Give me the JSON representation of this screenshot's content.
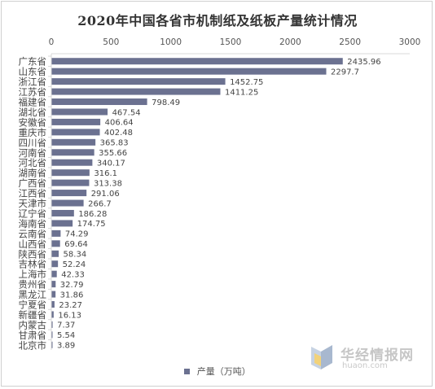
{
  "chart_data": {
    "type": "bar",
    "orientation": "horizontal",
    "title": "2020年中国各省市机制纸及纸板产量统计情况",
    "categories": [
      "广东省",
      "山东省",
      "浙江省",
      "江苏省",
      "福建省",
      "湖北省",
      "安徽省",
      "重庆市",
      "四川省",
      "河南省",
      "河北省",
      "湖南省",
      "广西省",
      "江西省",
      "天津市",
      "辽宁省",
      "海南省",
      "云南省",
      "山西省",
      "陕西省",
      "吉林省",
      "上海市",
      "贵州省",
      "黑龙江",
      "宁夏省",
      "新疆省",
      "内蒙古",
      "甘肃省",
      "北京市"
    ],
    "series": [
      {
        "name": "产量（万吨）",
        "values": [
          2435.96,
          2297.7,
          1452.75,
          1411.25,
          798.49,
          467.54,
          406.64,
          402.48,
          365.83,
          355.66,
          340.17,
          316.1,
          313.38,
          291.06,
          266.7,
          186.28,
          174.75,
          74.29,
          69.64,
          58.34,
          52.24,
          42.33,
          32.79,
          31.86,
          23.27,
          16.13,
          7.37,
          5.54,
          3.89
        ],
        "labels": [
          "2435.96",
          "2297.7",
          "1452.75",
          "1411.25",
          "798.49",
          "467.54",
          "406.64",
          "402.48",
          "365.83",
          "355.66",
          "340.17",
          "316.1",
          "313.38",
          "291.06",
          "266.7",
          "186.28",
          "174.75",
          "74.29",
          "69.64",
          "58.34",
          "52.24",
          "42.33",
          "32.79",
          "31.86",
          "23.27",
          "16.13",
          "7.37",
          "5.54",
          "3.89"
        ]
      }
    ],
    "xlim": [
      0,
      3000
    ],
    "xticks": [
      "0",
      "500",
      "1000",
      "1500",
      "2000",
      "2500",
      "3000"
    ],
    "xaxis_position": "top",
    "grid": false,
    "legend_position": "bottom",
    "bar_color": "#6b7190"
  },
  "watermark": {
    "brand": "华经情报网",
    "url": "huaon.com",
    "colors": {
      "light": "#dfe6ef",
      "mid": "#c7d3e3",
      "dark": "#a8b8cf",
      "accent": "#f2d27a"
    }
  }
}
